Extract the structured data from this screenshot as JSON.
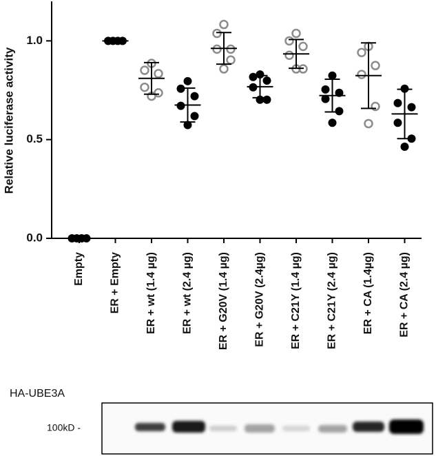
{
  "chart_data": {
    "type": "scatter",
    "y_label": "Relative luciferase activity",
    "categories": [
      "Empty",
      "ER + Empty",
      "ER + wt (1.4 µg)",
      "ER + wt (2.4 µg)",
      "ER + G20V (1.4 µg)",
      "ER + G20V (2.4µg)",
      "ER + C21Y (1.4 µg)",
      "ER + C21Y (2.4 µg)",
      "ER + CA (1.4µg)",
      "ER + CA (2.4 µg)"
    ],
    "points": [
      [
        0,
        0,
        0,
        0
      ],
      [
        1,
        1,
        1,
        1
      ],
      [
        0.886,
        0.851,
        0.834,
        0.765,
        0.737,
        0.72
      ],
      [
        0.796,
        0.758,
        0.72,
        0.671,
        0.619,
        0.574
      ],
      [
        1.083,
        1.038,
        0.958,
        0.958,
        0.903,
        0.858
      ],
      [
        0.83,
        0.817,
        0.799,
        0.765,
        0.702,
        0.702
      ],
      [
        1.038,
        1,
        0.972,
        0.927,
        0.858,
        0.858
      ],
      [
        0.824,
        0.754,
        0.737,
        0.706,
        0.644,
        0.585
      ],
      [
        0.972,
        0.941,
        0.875,
        0.83,
        0.668,
        0.581
      ],
      [
        0.758,
        0.685,
        0.664,
        0.585,
        0.505,
        0.464
      ]
    ],
    "means": [
      0,
      1,
      0.81,
      0.675,
      0.962,
      0.768,
      0.934,
      0.723,
      0.824,
      0.63
    ],
    "sds": [
      0,
      0,
      0.08,
      0.086,
      0.08,
      0.056,
      0.073,
      0.083,
      0.166,
      0.125
    ],
    "colors": [
      "#000000",
      "#000000",
      "#8c8c8c",
      "#000000",
      "#8c8c8c",
      "#000000",
      "#8c8c8c",
      "#000000",
      "#8c8c8c",
      "#000000"
    ],
    "hollow": [
      false,
      false,
      true,
      false,
      true,
      false,
      true,
      false,
      true,
      false
    ],
    "ylim": [
      0,
      1.2
    ],
    "yticks": [
      {
        "value": 0,
        "label": "0.0"
      },
      0.5,
      {
        "value": 1,
        "label": "1.0"
      }
    ]
  },
  "blot": {
    "label": "HA-UBE3A",
    "marker": "100kD -"
  }
}
